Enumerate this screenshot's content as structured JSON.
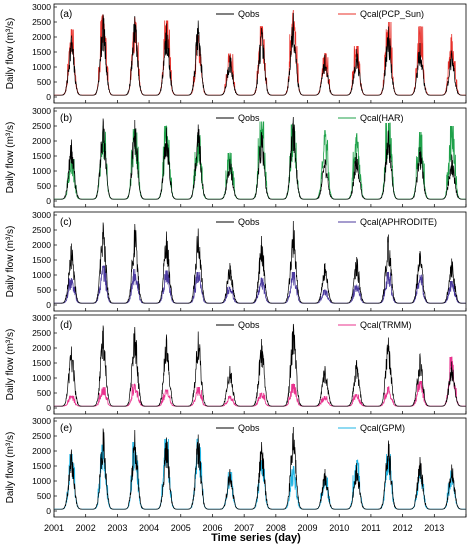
{
  "chart_data": [
    {
      "type": "line",
      "panel_label": "(a)",
      "ylabel": "Daily flow (m³/s)",
      "ylim": [
        0,
        3000
      ],
      "yticks": [
        0,
        500,
        1000,
        1500,
        2000,
        2500,
        3000
      ],
      "xlim": [
        2001,
        2014
      ],
      "series": [
        {
          "name": "Qobs",
          "color": "#000000",
          "annual_peaks": [
            2050,
            2750,
            2700,
            2450,
            2550,
            1400,
            2300,
            2800,
            1400,
            1600,
            2350,
            1800,
            1550
          ]
        },
        {
          "name": "Qcal(PCP_Sun)",
          "color": "#e8302a",
          "annual_peaks": [
            2250,
            2750,
            2650,
            2550,
            2050,
            1450,
            2350,
            2900,
            1450,
            1700,
            2500,
            2350,
            2100
          ]
        }
      ]
    },
    {
      "type": "line",
      "panel_label": "(b)",
      "ylabel": "Daily flow (m³/s)",
      "ylim": [
        0,
        3000
      ],
      "yticks": [
        0,
        500,
        1000,
        1500,
        2000,
        2500,
        3000
      ],
      "xlim": [
        2001,
        2014
      ],
      "series": [
        {
          "name": "Qobs",
          "color": "#000000",
          "annual_peaks": [
            2050,
            2750,
            2700,
            2450,
            2550,
            1400,
            2300,
            2800,
            1400,
            1600,
            2350,
            1800,
            1550
          ]
        },
        {
          "name": "Qcal(HAR)",
          "color": "#1fa14a",
          "annual_peaks": [
            1400,
            2500,
            2400,
            2500,
            2200,
            1600,
            2650,
            2550,
            2350,
            2250,
            2600,
            2300,
            2500
          ]
        }
      ]
    },
    {
      "type": "line",
      "panel_label": "(c)",
      "ylabel": "Daily flow (m³/s)",
      "ylim": [
        0,
        3000
      ],
      "yticks": [
        0,
        500,
        1000,
        1500,
        2000,
        2500,
        3000
      ],
      "xlim": [
        2001,
        2014
      ],
      "series": [
        {
          "name": "Qobs",
          "color": "#000000",
          "annual_peaks": [
            2050,
            2750,
            2700,
            2450,
            2550,
            1400,
            2300,
            2800,
            1400,
            1600,
            2350,
            1800,
            1550
          ]
        },
        {
          "name": "Qcal(APHRODITE)",
          "color": "#4b3a9e",
          "annual_peaks": [
            900,
            1300,
            1200,
            1150,
            1100,
            600,
            900,
            1100,
            500,
            650,
            1100,
            1000,
            800
          ]
        }
      ]
    },
    {
      "type": "line",
      "panel_label": "(d)",
      "ylabel": "Daily flow (m³/s)",
      "ylim": [
        0,
        3000
      ],
      "yticks": [
        0,
        500,
        1000,
        1500,
        2000,
        2500,
        3000
      ],
      "xlim": [
        2001,
        2014
      ],
      "series": [
        {
          "name": "Qobs",
          "color": "#000000",
          "annual_peaks": [
            2050,
            2750,
            2700,
            2450,
            2550,
            1400,
            2300,
            2800,
            1400,
            1600,
            2350,
            1800,
            1550
          ]
        },
        {
          "name": "Qcal(TRMM)",
          "color": "#e8338e",
          "annual_peaks": [
            400,
            700,
            800,
            600,
            700,
            400,
            500,
            800,
            400,
            450,
            700,
            900,
            1700
          ]
        }
      ]
    },
    {
      "type": "line",
      "panel_label": "(e)",
      "ylabel": "Daily flow (m³/s)",
      "ylim": [
        0,
        3000
      ],
      "yticks": [
        0,
        500,
        1000,
        1500,
        2000,
        2500,
        3000
      ],
      "xlim": [
        2001,
        2014
      ],
      "series": [
        {
          "name": "Qobs",
          "color": "#000000",
          "annual_peaks": [
            2050,
            2750,
            2700,
            2450,
            2550,
            1400,
            2300,
            2800,
            1400,
            1600,
            2350,
            1800,
            1550
          ]
        },
        {
          "name": "Qcal(GPM)",
          "color": "#1fb4e4",
          "annual_peaks": [
            1900,
            2200,
            2300,
            2400,
            2400,
            1300,
            1700,
            1500,
            1200,
            1700,
            1900,
            1400,
            1350
          ]
        }
      ]
    }
  ],
  "xticks": [
    "2001",
    "2002",
    "2003",
    "2004",
    "2005",
    "2006",
    "2007",
    "2008",
    "2009",
    "2010",
    "2011",
    "2012",
    "2013"
  ],
  "xlabel": "Time series (day)"
}
